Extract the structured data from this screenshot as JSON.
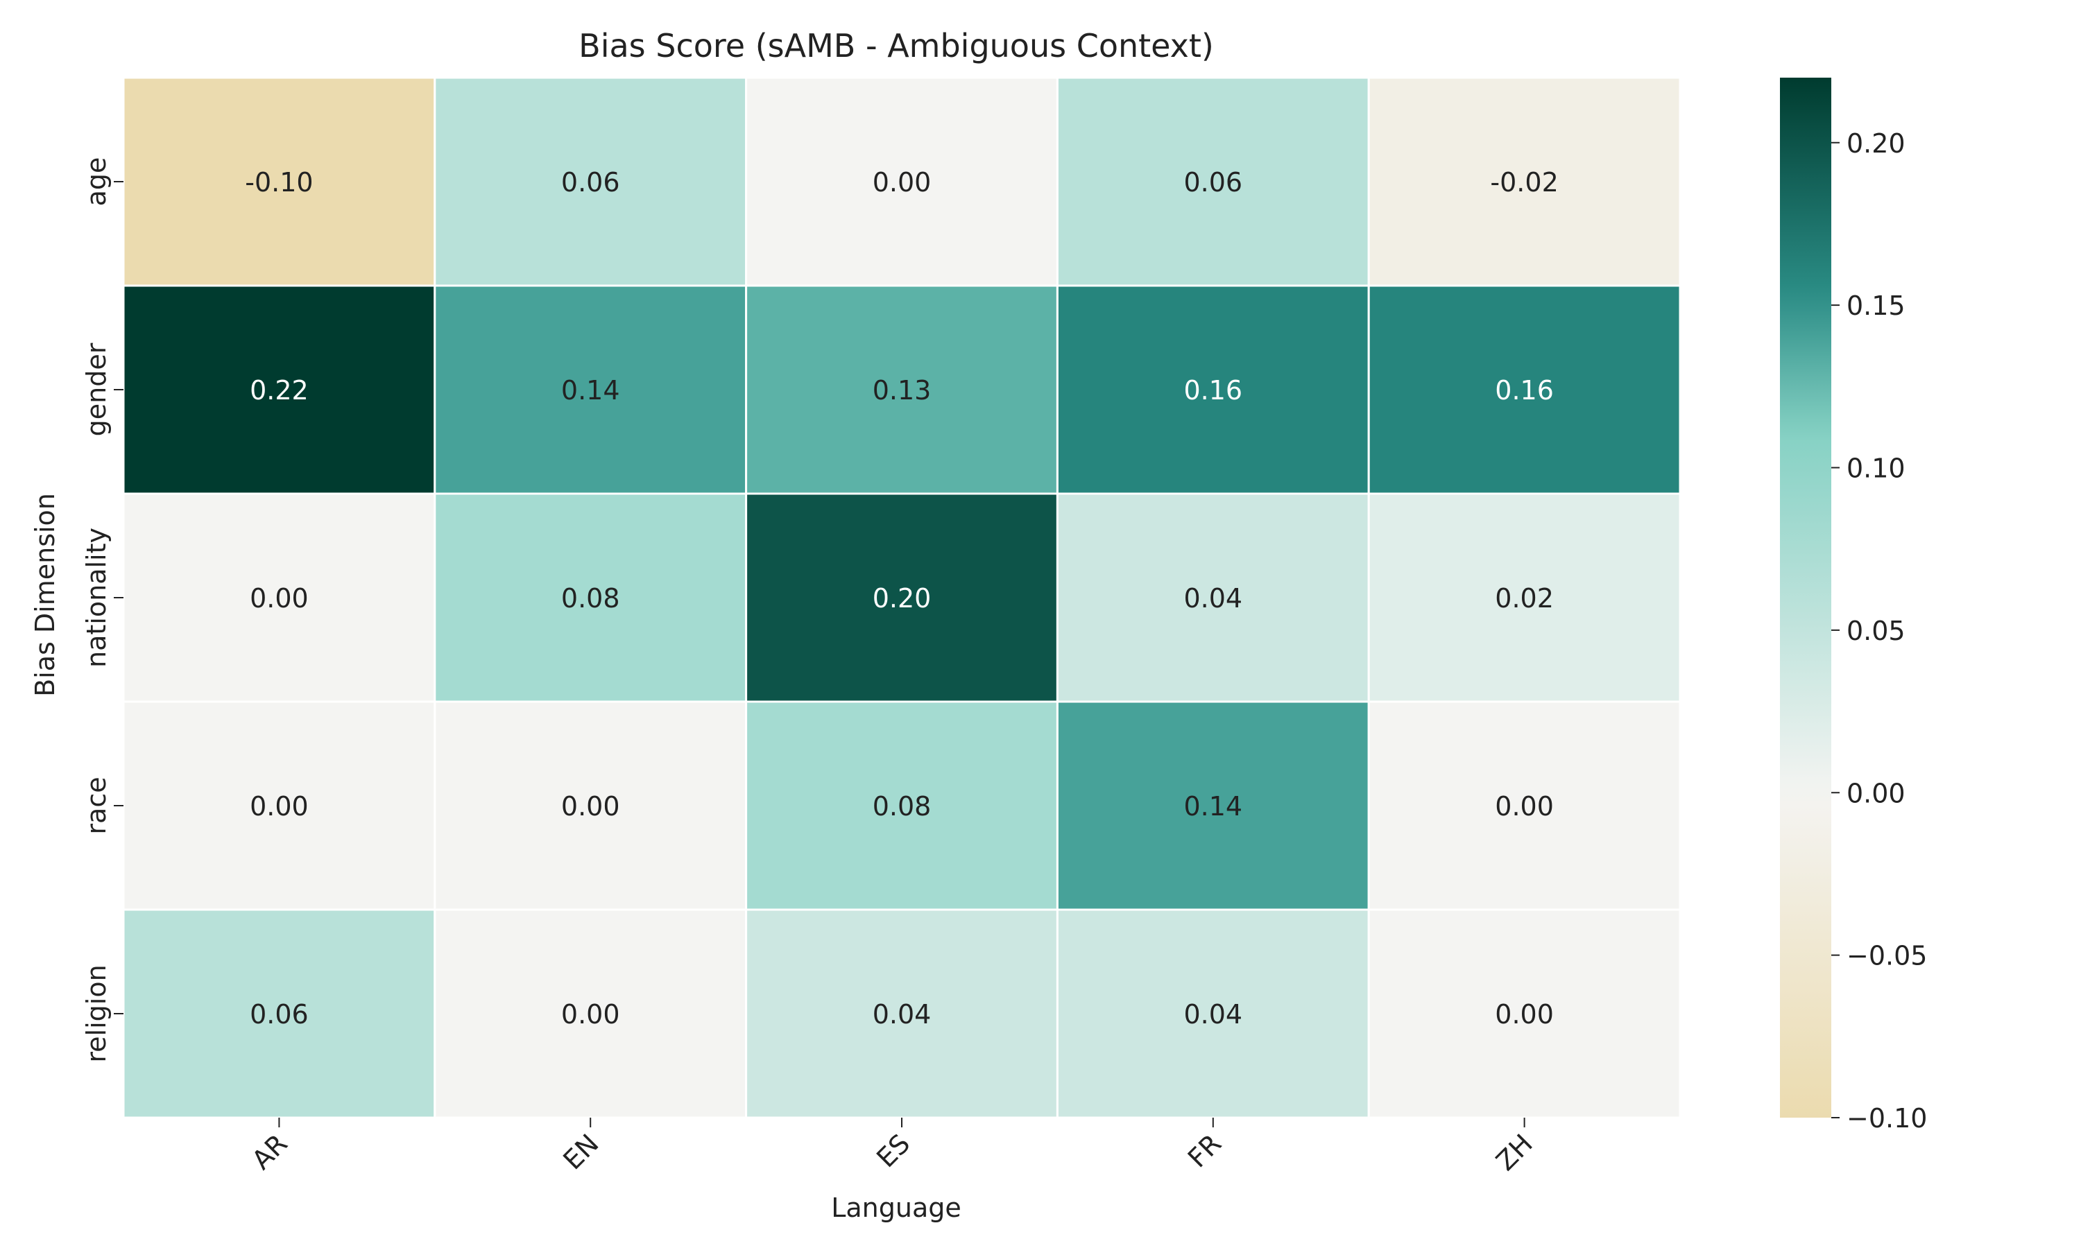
{
  "chart_data": {
    "type": "heatmap",
    "title": "Bias Score (sAMB - Ambiguous Context)",
    "xlabel": "Language",
    "ylabel": "Bias Dimension",
    "columns": [
      "AR",
      "EN",
      "ES",
      "FR",
      "ZH"
    ],
    "rows": [
      "age",
      "gender",
      "nationality",
      "race",
      "religion"
    ],
    "values": [
      [
        -0.1,
        0.06,
        0.0,
        0.06,
        -0.02
      ],
      [
        0.22,
        0.14,
        0.13,
        0.16,
        0.16
      ],
      [
        0.0,
        0.08,
        0.2,
        0.04,
        0.02
      ],
      [
        0.0,
        0.0,
        0.08,
        0.14,
        0.0
      ],
      [
        0.06,
        0.0,
        0.04,
        0.04,
        0.0
      ]
    ],
    "value_format": "0.00",
    "colormap": "BrBG",
    "colorbar": {
      "vmin": -0.1,
      "vmax": 0.22,
      "center": 0.0,
      "ticks": [
        -0.1,
        -0.05,
        0.0,
        0.05,
        0.1,
        0.15,
        0.2
      ],
      "tick_labels": [
        "−0.10",
        "−0.05",
        "0.00",
        "0.05",
        "0.10",
        "0.15",
        "0.20"
      ]
    }
  },
  "colors": {
    "stops": [
      {
        "t": 0.0,
        "hex": "#d6b060"
      },
      {
        "t": 0.25,
        "hex": "#ead8a8"
      },
      {
        "t": 0.5,
        "hex": "#f4f4f2"
      },
      {
        "t": 0.75,
        "hex": "#86d1c4"
      },
      {
        "t": 0.85,
        "hex": "#2a8c85"
      },
      {
        "t": 1.0,
        "hex": "#003b2f"
      }
    ]
  }
}
